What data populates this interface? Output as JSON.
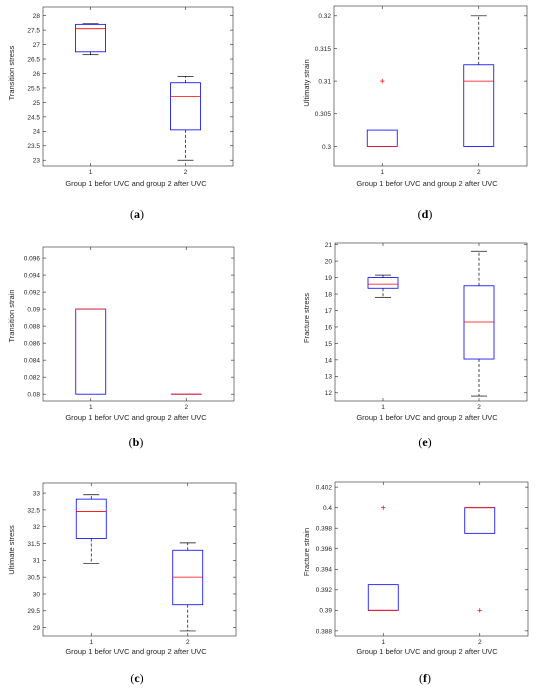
{
  "chart_data": [
    {
      "type": "boxplot",
      "panel_label": "(a)",
      "letter": "a",
      "xlabel": "Group 1 befor UVC and group 2 after UVC",
      "ylabel": "Transition stress",
      "categories": [
        "1",
        "2"
      ],
      "ylim": [
        22.8,
        28.3
      ],
      "yticks": [
        23,
        23.5,
        24,
        24.5,
        25,
        25.5,
        26,
        26.5,
        27,
        27.5,
        28
      ],
      "ytick_labels": [
        "23",
        "23.5",
        "24",
        "24.5",
        "25",
        "25.5",
        "26",
        "26.5",
        "27",
        "27.5",
        "28"
      ],
      "boxes": [
        {
          "whisker_low": 26.65,
          "q1": 26.75,
          "median": 27.55,
          "q3": 27.7,
          "whisker_high": 27.72,
          "outliers": []
        },
        {
          "whisker_low": 23.0,
          "q1": 24.05,
          "median": 25.2,
          "q3": 25.68,
          "whisker_high": 25.9,
          "outliers": []
        }
      ]
    },
    {
      "type": "boxplot",
      "panel_label": "(d)",
      "letter": "d",
      "xlabel": "Group 1 befor UVC and group 2 after UVC",
      "ylabel": "Ultimaty strain",
      "categories": [
        "1",
        "2"
      ],
      "ylim": [
        0.297,
        0.3215
      ],
      "yticks": [
        0.3,
        0.305,
        0.31,
        0.315,
        0.32
      ],
      "ytick_labels": [
        "0.3",
        "0.305",
        "0.31",
        "0.315",
        "0.32"
      ],
      "boxes": [
        {
          "whisker_low": 0.3,
          "q1": 0.3,
          "median": 0.3,
          "q3": 0.3025,
          "whisker_high": 0.3025,
          "outliers": [
            0.31
          ]
        },
        {
          "whisker_low": 0.3,
          "q1": 0.3,
          "median": 0.31,
          "q3": 0.3125,
          "whisker_high": 0.32,
          "outliers": []
        }
      ]
    },
    {
      "type": "boxplot",
      "panel_label": "(b)",
      "letter": "b",
      "xlabel": "Group 1 befor UVC and group 2 after UVC",
      "ylabel": "Transition strain",
      "categories": [
        "1",
        "2"
      ],
      "ylim": [
        0.0792,
        0.0973
      ],
      "yticks": [
        0.08,
        0.082,
        0.084,
        0.086,
        0.088,
        0.09,
        0.092,
        0.094,
        0.096
      ],
      "ytick_labels": [
        "0.08",
        "0.082",
        "0.084",
        "0.086",
        "0.088",
        "0.09",
        "0.092",
        "0.094",
        "0.096"
      ],
      "boxes": [
        {
          "whisker_low": 0.08,
          "q1": 0.08,
          "median": 0.09,
          "q3": 0.09,
          "whisker_high": 0.09,
          "outliers": []
        },
        {
          "whisker_low": 0.08,
          "q1": 0.08,
          "median": 0.08,
          "q3": 0.08,
          "whisker_high": 0.08,
          "outliers": []
        }
      ]
    },
    {
      "type": "boxplot",
      "panel_label": "(e)",
      "letter": "e",
      "xlabel": "Group 1 befor UVC and group 2 after UVC",
      "ylabel": "Fracture stress",
      "categories": [
        "1",
        "2"
      ],
      "ylim": [
        11.5,
        21.1
      ],
      "yticks": [
        12,
        13,
        14,
        15,
        16,
        17,
        18,
        19,
        20,
        21
      ],
      "ytick_labels": [
        "12",
        "13",
        "14",
        "15",
        "16",
        "17",
        "18",
        "19",
        "20",
        "21"
      ],
      "boxes": [
        {
          "whisker_low": 17.8,
          "q1": 18.35,
          "median": 18.6,
          "q3": 19.0,
          "whisker_high": 19.15,
          "outliers": []
        },
        {
          "whisker_low": 11.8,
          "q1": 14.05,
          "median": 16.3,
          "q3": 18.5,
          "whisker_high": 20.6,
          "outliers": []
        }
      ]
    },
    {
      "type": "boxplot",
      "panel_label": "(c)",
      "letter": "c",
      "xlabel": "Group 1 befor UVC and group 2 after UVC",
      "ylabel": "Ultimate stress",
      "categories": [
        "1",
        "2"
      ],
      "ylim": [
        28.75,
        33.3
      ],
      "yticks": [
        29,
        29.5,
        30,
        30.5,
        31,
        31.5,
        32,
        32.5,
        33
      ],
      "ytick_labels": [
        "29",
        "29.5",
        "30",
        "30.5",
        "31",
        "31.5",
        "32",
        "32.5",
        "33"
      ],
      "boxes": [
        {
          "whisker_low": 30.9,
          "q1": 31.65,
          "median": 32.45,
          "q3": 32.82,
          "whisker_high": 32.95,
          "outliers": []
        },
        {
          "whisker_low": 28.9,
          "q1": 29.68,
          "median": 30.5,
          "q3": 31.3,
          "whisker_high": 31.52,
          "outliers": []
        }
      ]
    },
    {
      "type": "boxplot",
      "panel_label": "(f)",
      "letter": "f",
      "xlabel": "Group 1 befor UVC and group 2 after UVC",
      "ylabel": "Fracture strain",
      "categories": [
        "1",
        "2"
      ],
      "ylim": [
        0.3875,
        0.4025
      ],
      "yticks": [
        0.388,
        0.39,
        0.392,
        0.394,
        0.396,
        0.398,
        0.4,
        0.402
      ],
      "ytick_labels": [
        "0.388",
        "0.39",
        "0.392",
        "0.394",
        "0.396",
        "0.398",
        "0.4",
        "0.402"
      ],
      "boxes": [
        {
          "whisker_low": 0.39,
          "q1": 0.39,
          "median": 0.39,
          "q3": 0.3925,
          "whisker_high": 0.3925,
          "outliers": [
            0.4
          ]
        },
        {
          "whisker_low": 0.3975,
          "q1": 0.3975,
          "median": 0.4,
          "q3": 0.4,
          "whisker_high": 0.4,
          "outliers": [
            0.39
          ]
        }
      ]
    }
  ],
  "colors": {
    "box": "#0000ff",
    "median": "#ff0000",
    "whisker": "#000000",
    "outlier": "#ff0000",
    "axis": "#262626"
  }
}
